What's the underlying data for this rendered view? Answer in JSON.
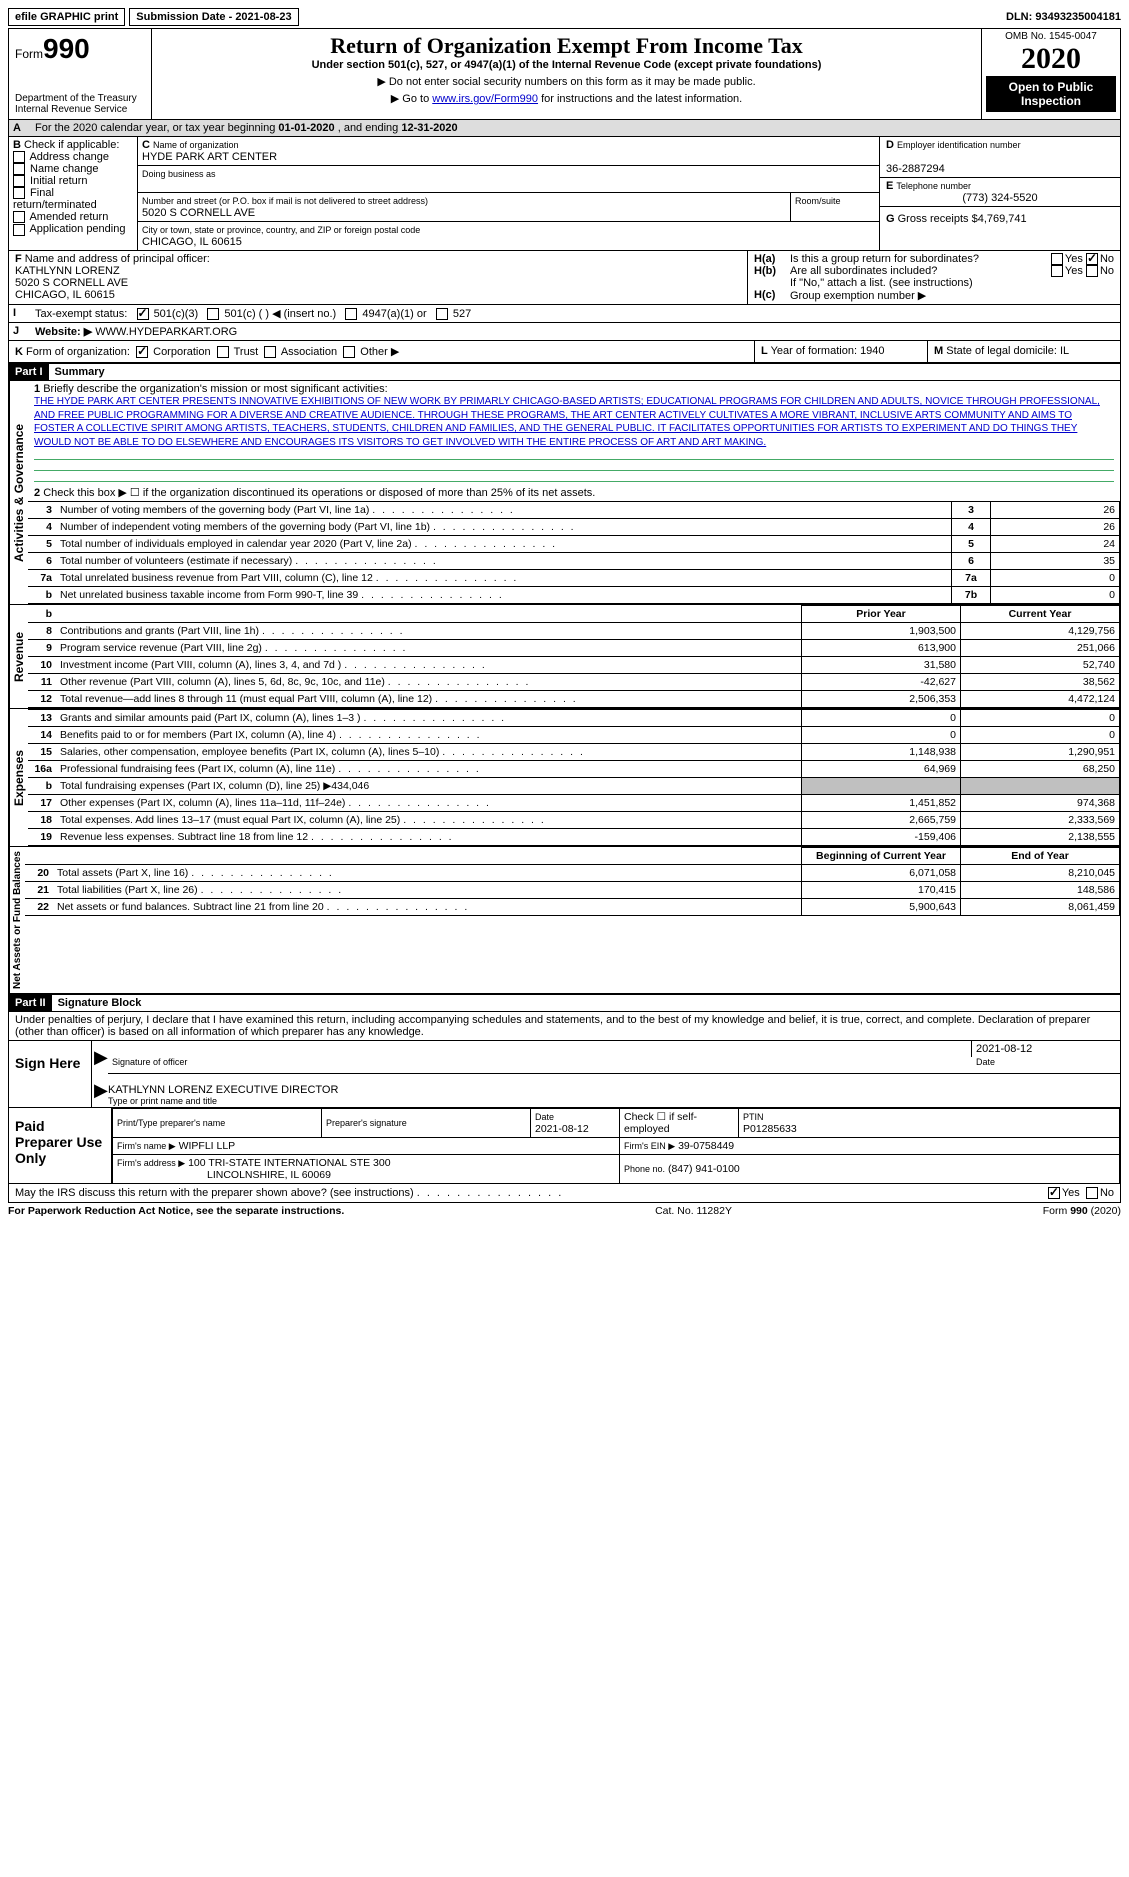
{
  "topbar": {
    "efile": "efile GRAPHIC print",
    "submission_label": "Submission Date - 2021-08-23",
    "dln": "DLN: 93493235004181"
  },
  "header": {
    "form_word": "Form",
    "form_num": "990",
    "dept1": "Department of the Treasury",
    "dept2": "Internal Revenue Service",
    "title": "Return of Organization Exempt From Income Tax",
    "subtitle": "Under section 501(c), 527, or 4947(a)(1) of the Internal Revenue Code (except private foundations)",
    "note1": "Do not enter social security numbers on this form as it may be made public.",
    "note2_a": "Go to ",
    "note2_link": "www.irs.gov/Form990",
    "note2_b": " for instructions and the latest information.",
    "omb": "OMB No. 1545-0047",
    "year": "2020",
    "open": "Open to Public Inspection"
  },
  "A": {
    "text_a": "For the 2020 calendar year, or tax year beginning ",
    "begin": "01-01-2020",
    "text_b": "   , and ending ",
    "end": "12-31-2020"
  },
  "B": {
    "label": "Check if applicable:",
    "opts": [
      "Address change",
      "Name change",
      "Initial return",
      "Final return/terminated",
      "Amended return",
      "Application pending"
    ]
  },
  "C": {
    "name_lbl": "Name of organization",
    "name": "HYDE PARK ART CENTER",
    "dba_lbl": "Doing business as",
    "addr_lbl": "Number and street (or P.O. box if mail is not delivered to street address)",
    "addr": "5020 S CORNELL AVE",
    "room_lbl": "Room/suite",
    "city_lbl": "City or town, state or province, country, and ZIP or foreign postal code",
    "city": "CHICAGO, IL  60615"
  },
  "D": {
    "lbl": "Employer identification number",
    "val": "36-2887294"
  },
  "E": {
    "lbl": "Telephone number",
    "val": "(773) 324-5520"
  },
  "G": {
    "lbl": "Gross receipts $",
    "val": "4,769,741"
  },
  "F": {
    "lbl": "Name and address of principal officer:",
    "l1": "KATHLYNN LORENZ",
    "l2": "5020 S CORNELL AVE",
    "l3": "CHICAGO, IL  60615"
  },
  "H": {
    "a": "Is this a group return for subordinates?",
    "b": "Are all subordinates included?",
    "b_note": "If \"No,\" attach a list. (see instructions)",
    "c": "Group exemption number ▶"
  },
  "I": {
    "lbl": "Tax-exempt status:",
    "o1": "501(c)(3)",
    "o2": "501(c) (   ) ◀ (insert no.)",
    "o3": "4947(a)(1) or",
    "o4": "527"
  },
  "J": {
    "lbl": "Website: ▶",
    "val": "WWW.HYDEPARKART.ORG"
  },
  "K": {
    "lbl": "Form of organization:",
    "opts": [
      "Corporation",
      "Trust",
      "Association",
      "Other ▶"
    ]
  },
  "L": {
    "lbl": "Year of formation:",
    "val": "1940"
  },
  "M": {
    "lbl": "State of legal domicile:",
    "val": "IL"
  },
  "part1": {
    "hdr": "Part I",
    "title": "Summary",
    "line1_lbl": "Briefly describe the organization's mission or most significant activities:",
    "mission": "THE HYDE PARK ART CENTER PRESENTS INNOVATIVE EXHIBITIONS OF NEW WORK BY PRIMARLY CHICAGO-BASED ARTISTS; EDUCATIONAL PROGRAMS FOR CHILDREN AND ADULTS, NOVICE THROUGH PROFESSIONAL, AND FREE PUBLIC PROGRAMMING FOR A DIVERSE AND CREATIVE AUDIENCE. THROUGH THESE PROGRAMS, THE ART CENTER ACTIVELY CULTIVATES A MORE VIBRANT, INCLUSIVE ARTS COMMUNITY AND AIMS TO FOSTER A COLLECTIVE SPIRIT AMONG ARTISTS, TEACHERS, STUDENTS, CHILDREN AND FAMILIES, AND THE GENERAL PUBLIC. IT FACILITATES OPPORTUNITIES FOR ARTISTS TO EXPERIMENT AND DO THINGS THEY WOULD NOT BE ABLE TO DO ELSEWHERE AND ENCOURAGES ITS VISITORS TO GET INVOLVED WITH THE ENTIRE PROCESS OF ART AND ART MAKING.",
    "line2": "Check this box ▶ ☐ if the organization discontinued its operations or disposed of more than 25% of its net assets.",
    "side_ag": "Activities & Governance",
    "side_rev": "Revenue",
    "side_exp": "Expenses",
    "side_na": "Net Assets or Fund Balances",
    "cols": {
      "prior": "Prior Year",
      "current": "Current Year",
      "begin": "Beginning of Current Year",
      "end": "End of Year"
    },
    "gov_lines": [
      {
        "n": "3",
        "t": "Number of voting members of the governing body (Part VI, line 1a)",
        "box": "3",
        "v": "26"
      },
      {
        "n": "4",
        "t": "Number of independent voting members of the governing body (Part VI, line 1b)",
        "box": "4",
        "v": "26"
      },
      {
        "n": "5",
        "t": "Total number of individuals employed in calendar year 2020 (Part V, line 2a)",
        "box": "5",
        "v": "24"
      },
      {
        "n": "6",
        "t": "Total number of volunteers (estimate if necessary)",
        "box": "6",
        "v": "35"
      },
      {
        "n": "7a",
        "t": "Total unrelated business revenue from Part VIII, column (C), line 12",
        "box": "7a",
        "v": "0"
      },
      {
        "n": "b",
        "t": "Net unrelated business taxable income from Form 990-T, line 39",
        "box": "7b",
        "v": "0"
      }
    ],
    "rev_lines": [
      {
        "n": "8",
        "t": "Contributions and grants (Part VIII, line 1h)",
        "p": "1,903,500",
        "c": "4,129,756"
      },
      {
        "n": "9",
        "t": "Program service revenue (Part VIII, line 2g)",
        "p": "613,900",
        "c": "251,066"
      },
      {
        "n": "10",
        "t": "Investment income (Part VIII, column (A), lines 3, 4, and 7d )",
        "p": "31,580",
        "c": "52,740"
      },
      {
        "n": "11",
        "t": "Other revenue (Part VIII, column (A), lines 5, 6d, 8c, 9c, 10c, and 11e)",
        "p": "-42,627",
        "c": "38,562"
      },
      {
        "n": "12",
        "t": "Total revenue—add lines 8 through 11 (must equal Part VIII, column (A), line 12)",
        "p": "2,506,353",
        "c": "4,472,124"
      }
    ],
    "exp_lines": [
      {
        "n": "13",
        "t": "Grants and similar amounts paid (Part IX, column (A), lines 1–3 )",
        "p": "0",
        "c": "0"
      },
      {
        "n": "14",
        "t": "Benefits paid to or for members (Part IX, column (A), line 4)",
        "p": "0",
        "c": "0"
      },
      {
        "n": "15",
        "t": "Salaries, other compensation, employee benefits (Part IX, column (A), lines 5–10)",
        "p": "1,148,938",
        "c": "1,290,951"
      },
      {
        "n": "16a",
        "t": "Professional fundraising fees (Part IX, column (A), line 11e)",
        "p": "64,969",
        "c": "68,250"
      },
      {
        "n": "b",
        "t": "Total fundraising expenses (Part IX, column (D), line 25) ▶434,046",
        "p": "",
        "c": "",
        "shade": true
      },
      {
        "n": "17",
        "t": "Other expenses (Part IX, column (A), lines 11a–11d, 11f–24e)",
        "p": "1,451,852",
        "c": "974,368"
      },
      {
        "n": "18",
        "t": "Total expenses. Add lines 13–17 (must equal Part IX, column (A), line 25)",
        "p": "2,665,759",
        "c": "2,333,569"
      },
      {
        "n": "19",
        "t": "Revenue less expenses. Subtract line 18 from line 12",
        "p": "-159,406",
        "c": "2,138,555"
      }
    ],
    "na_lines": [
      {
        "n": "20",
        "t": "Total assets (Part X, line 16)",
        "p": "6,071,058",
        "c": "8,210,045"
      },
      {
        "n": "21",
        "t": "Total liabilities (Part X, line 26)",
        "p": "170,415",
        "c": "148,586"
      },
      {
        "n": "22",
        "t": "Net assets or fund balances. Subtract line 21 from line 20",
        "p": "5,900,643",
        "c": "8,061,459"
      }
    ]
  },
  "part2": {
    "hdr": "Part II",
    "title": "Signature Block",
    "jurat": "Under penalties of perjury, I declare that I have examined this return, including accompanying schedules and statements, and to the best of my knowledge and belief, it is true, correct, and complete. Declaration of preparer (other than officer) is based on all information of which preparer has any knowledge.",
    "sign_here": "Sign Here",
    "sig_lbl": "Signature of officer",
    "date_lbl": "Date",
    "sig_date": "2021-08-12",
    "name_title": "KATHLYNN LORENZ  EXECUTIVE DIRECTOR",
    "name_lbl": "Type or print name and title",
    "paid": "Paid Preparer Use Only",
    "pp_name_lbl": "Print/Type preparer's name",
    "pp_sig_lbl": "Preparer's signature",
    "pp_date_lbl": "Date",
    "pp_date": "2021-08-12",
    "pp_self": "Check ☐ if self-employed",
    "pp_ptin_lbl": "PTIN",
    "pp_ptin": "P01285633",
    "firm_name_lbl": "Firm's name    ▶",
    "firm_name": "WIPFLI LLP",
    "firm_ein_lbl": "Firm's EIN ▶",
    "firm_ein": "39-0758449",
    "firm_addr_lbl": "Firm's address ▶",
    "firm_addr1": "100 TRI-STATE INTERNATIONAL STE 300",
    "firm_addr2": "LINCOLNSHIRE, IL  60069",
    "firm_phone_lbl": "Phone no.",
    "firm_phone": "(847) 941-0100",
    "discuss": "May the IRS discuss this return with the preparer shown above? (see instructions)",
    "yes": "Yes",
    "no": "No"
  },
  "footer": {
    "left": "For Paperwork Reduction Act Notice, see the separate instructions.",
    "mid": "Cat. No. 11282Y",
    "right_a": "Form ",
    "right_b": "990",
    "right_c": " (2020)"
  }
}
